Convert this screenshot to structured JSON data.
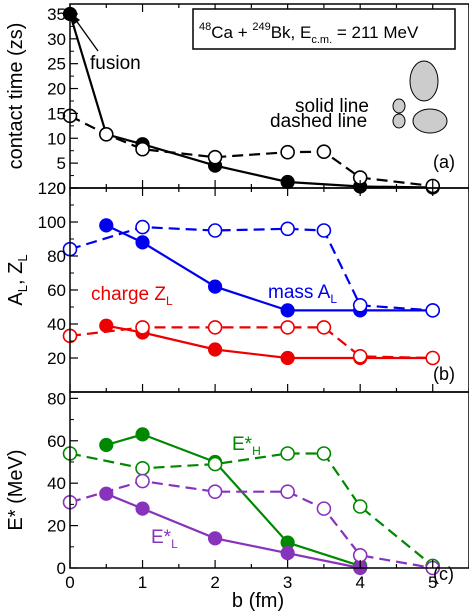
{
  "chart_data": [
    {
      "id": "a",
      "type": "line",
      "panel_label": "(a)",
      "ylabel": "contact time (zs)",
      "ylim": [
        0,
        37
      ],
      "y_ticks": [
        {
          "value": 0,
          "label": "0"
        },
        {
          "value": 5,
          "label": "5"
        },
        {
          "value": 10,
          "label": "10"
        },
        {
          "value": 15,
          "label": "15"
        },
        {
          "value": 20,
          "label": "20"
        },
        {
          "value": 25,
          "label": "25"
        },
        {
          "value": 30,
          "label": "30"
        },
        {
          "value": 35,
          "label": "35"
        }
      ],
      "reaction_label": {
        "pre": "48",
        "a": "Ca + ",
        "pre2": "249",
        "b": "Bk, E",
        "sub": "c.m.",
        "c": " = 211 MeV"
      },
      "legend": [
        {
          "label": "solid line",
          "style": "solid"
        },
        {
          "label": "dashed line",
          "style": "dashed"
        }
      ],
      "annotation": "fusion",
      "series": [
        {
          "key": "solid",
          "style": "solid",
          "marker": "filled",
          "color": "#000000",
          "x": [
            0,
            0.5,
            1,
            2,
            3,
            4,
            5
          ],
          "values": [
            35,
            10.8,
            8.8,
            4.5,
            1.2,
            0.3,
            0.1
          ]
        },
        {
          "key": "dashed",
          "style": "dashed",
          "marker": "open",
          "color": "#000000",
          "x": [
            0,
            0.5,
            1,
            2,
            3,
            3.5,
            4,
            5
          ],
          "values": [
            14.5,
            10.8,
            7.8,
            6.2,
            7.2,
            7.3,
            2.1,
            0.4
          ]
        }
      ]
    },
    {
      "id": "b",
      "type": "line",
      "panel_label": "(b)",
      "ylabel_main": "A",
      "ylabel_sub1": "L",
      "ylabel_mid": ", Z",
      "ylabel_sub2": "L",
      "ylim": [
        0,
        120
      ],
      "y_ticks": [
        {
          "value": 20,
          "label": "20"
        },
        {
          "value": 40,
          "label": "40"
        },
        {
          "value": 60,
          "label": "60"
        },
        {
          "value": 80,
          "label": "80"
        },
        {
          "value": 100,
          "label": "100"
        },
        {
          "value": 120,
          "label": "120"
        }
      ],
      "labels": [
        {
          "key": "mass",
          "main": "mass A",
          "sub": "L",
          "color": "#0000ee"
        },
        {
          "key": "charge",
          "main": "charge Z",
          "sub": "L",
          "color": "#ee0000"
        }
      ],
      "series": [
        {
          "key": "mass-solid",
          "style": "solid",
          "marker": "filled",
          "color": "#0000ee",
          "x": [
            0.5,
            1,
            2,
            3,
            4,
            5
          ],
          "values": [
            98,
            88,
            62,
            48,
            48,
            48
          ]
        },
        {
          "key": "mass-dashed",
          "style": "dashed",
          "marker": "open",
          "color": "#0000ee",
          "x": [
            0,
            1,
            2,
            3,
            3.5,
            4,
            5
          ],
          "values": [
            84,
            97,
            95,
            96,
            95,
            51,
            48
          ]
        },
        {
          "key": "charge-solid",
          "style": "solid",
          "marker": "filled",
          "color": "#ee0000",
          "x": [
            0.5,
            1,
            2,
            3,
            4,
            5
          ],
          "values": [
            39,
            35,
            25,
            20,
            20,
            20
          ]
        },
        {
          "key": "charge-dashed",
          "style": "dashed",
          "marker": "open",
          "color": "#ee0000",
          "x": [
            0,
            1,
            2,
            3,
            3.5,
            4,
            5
          ],
          "values": [
            33,
            38,
            38,
            38,
            38,
            21,
            20
          ]
        }
      ]
    },
    {
      "id": "c",
      "type": "line",
      "panel_label": "(c)",
      "ylabel_main": "E* (MeV)",
      "xlabel": "b (fm)",
      "ylim": [
        0,
        83
      ],
      "xlim": [
        0,
        5.5
      ],
      "y_ticks": [
        {
          "value": 0,
          "label": "0"
        },
        {
          "value": 20,
          "label": "20"
        },
        {
          "value": 40,
          "label": "40"
        },
        {
          "value": 60,
          "label": "60"
        },
        {
          "value": 80,
          "label": "80"
        }
      ],
      "x_ticks": [
        {
          "value": 0,
          "label": "0"
        },
        {
          "value": 1,
          "label": "1"
        },
        {
          "value": 2,
          "label": "2"
        },
        {
          "value": 3,
          "label": "3"
        },
        {
          "value": 4,
          "label": "4"
        },
        {
          "value": 5,
          "label": "5"
        }
      ],
      "labels": [
        {
          "key": "heavy",
          "main": "E*",
          "sub": "H",
          "color": "#008800"
        },
        {
          "key": "light",
          "main": "E*",
          "sub": "L",
          "color": "#8833bb"
        }
      ],
      "series": [
        {
          "key": "H-solid",
          "style": "solid",
          "marker": "filled",
          "color": "#008800",
          "x": [
            0.5,
            1,
            2,
            3,
            4
          ],
          "values": [
            58,
            63,
            50,
            12,
            1
          ]
        },
        {
          "key": "H-dashed",
          "style": "dashed",
          "marker": "open",
          "color": "#008800",
          "x": [
            0,
            1,
            2,
            3,
            3.5,
            4,
            5
          ],
          "values": [
            54,
            47,
            49,
            54,
            54,
            29,
            1
          ]
        },
        {
          "key": "L-solid",
          "style": "solid",
          "marker": "filled",
          "color": "#8833bb",
          "x": [
            0.5,
            1,
            2,
            3,
            4
          ],
          "values": [
            35,
            28,
            14,
            7,
            0
          ]
        },
        {
          "key": "L-dashed",
          "style": "dashed",
          "marker": "open",
          "color": "#8833bb",
          "x": [
            0,
            1,
            2,
            3,
            3.5,
            4,
            5
          ],
          "values": [
            31,
            41,
            36,
            36,
            28,
            6,
            0
          ]
        }
      ]
    }
  ]
}
